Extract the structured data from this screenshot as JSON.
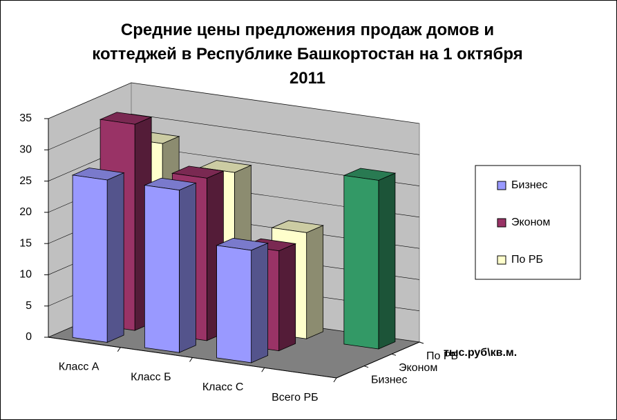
{
  "chart_data": {
    "type": "bar3d",
    "title": "Средние цены предложения продаж домов и коттеджей в Республике Башкортостан на 1 октября 2011",
    "categories": [
      "Класс А",
      "Класс Б",
      "Класс С",
      "Всего РБ"
    ],
    "series": [
      {
        "name": "Бизнес",
        "color": "#9999ff",
        "values": [
          26,
          26,
          18,
          null
        ]
      },
      {
        "name": "Эконом",
        "color": "#993366",
        "values": [
          33,
          26,
          16,
          null
        ]
      },
      {
        "name": "По РБ",
        "color": "#ffffcc",
        "values": [
          28,
          25,
          17,
          27
        ],
        "highlight": {
          "index": 3,
          "color": "#339966"
        }
      }
    ],
    "ylim": [
      0,
      35
    ],
    "yticks": [
      0,
      5,
      10,
      15,
      20,
      25,
      30,
      35
    ],
    "unit_label": "тыс.руб\\кв.м.",
    "grid": true,
    "legend": "right"
  }
}
